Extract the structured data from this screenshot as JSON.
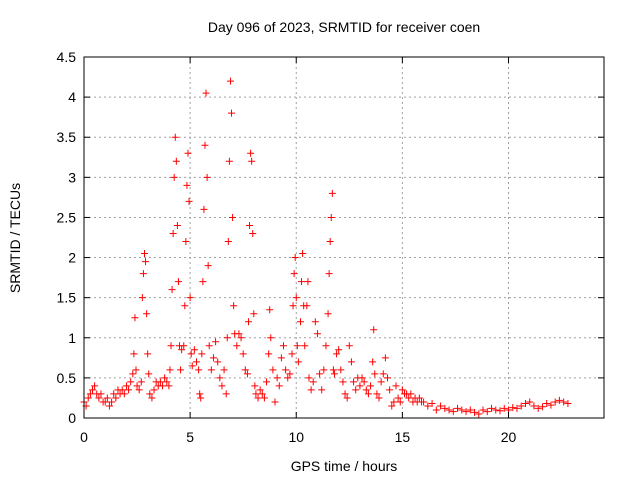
{
  "chart_data": {
    "type": "scatter",
    "title": "Day 096 of 2023, SRMTID for receiver coen",
    "xlabel": "GPS time / hours",
    "ylabel": "SRMTID / TECUs",
    "xlim": [
      0,
      24.5
    ],
    "ylim": [
      0,
      4.5
    ],
    "xticks": [
      0,
      5,
      10,
      15,
      20
    ],
    "xtick_labels": [
      "0",
      "5",
      "10",
      "15",
      "20"
    ],
    "yticks": [
      0,
      0.5,
      1,
      1.5,
      2,
      2.5,
      3,
      3.5,
      4,
      4.5
    ],
    "ytick_labels": [
      "0",
      "0.5",
      "1",
      "1.5",
      "2",
      "2.5",
      "3",
      "3.5",
      "4",
      "4.5"
    ],
    "grid": true,
    "marker": "+",
    "color": "#ff0000",
    "series": [
      {
        "name": "SRMTID",
        "points": [
          [
            0.0,
            0.2
          ],
          [
            0.1,
            0.15
          ],
          [
            0.2,
            0.25
          ],
          [
            0.3,
            0.3
          ],
          [
            0.4,
            0.35
          ],
          [
            0.5,
            0.4
          ],
          [
            0.6,
            0.3
          ],
          [
            0.7,
            0.25
          ],
          [
            0.8,
            0.3
          ],
          [
            0.9,
            0.2
          ],
          [
            1.0,
            0.2
          ],
          [
            1.1,
            0.25
          ],
          [
            1.2,
            0.15
          ],
          [
            1.3,
            0.2
          ],
          [
            1.4,
            0.3
          ],
          [
            1.5,
            0.25
          ],
          [
            1.6,
            0.35
          ],
          [
            1.7,
            0.3
          ],
          [
            1.8,
            0.35
          ],
          [
            1.9,
            0.3
          ],
          [
            2.0,
            0.4
          ],
          [
            2.1,
            0.35
          ],
          [
            2.2,
            0.45
          ],
          [
            2.3,
            0.55
          ],
          [
            2.35,
            0.8
          ],
          [
            2.4,
            1.25
          ],
          [
            2.45,
            0.6
          ],
          [
            2.5,
            0.4
          ],
          [
            2.6,
            0.35
          ],
          [
            2.7,
            0.45
          ],
          [
            2.75,
            1.5
          ],
          [
            2.8,
            1.8
          ],
          [
            2.85,
            2.05
          ],
          [
            2.9,
            1.95
          ],
          [
            2.95,
            1.3
          ],
          [
            3.0,
            0.8
          ],
          [
            3.05,
            0.55
          ],
          [
            3.1,
            0.3
          ],
          [
            3.2,
            0.25
          ],
          [
            3.3,
            0.35
          ],
          [
            3.4,
            0.45
          ],
          [
            3.5,
            0.4
          ],
          [
            3.6,
            0.45
          ],
          [
            3.7,
            0.4
          ],
          [
            3.8,
            0.5
          ],
          [
            3.9,
            0.45
          ],
          [
            4.0,
            0.4
          ],
          [
            4.05,
            0.6
          ],
          [
            4.1,
            0.9
          ],
          [
            4.15,
            1.6
          ],
          [
            4.2,
            2.3
          ],
          [
            4.25,
            3.0
          ],
          [
            4.3,
            3.5
          ],
          [
            4.35,
            3.2
          ],
          [
            4.4,
            2.4
          ],
          [
            4.45,
            1.7
          ],
          [
            4.5,
            0.9
          ],
          [
            4.55,
            0.6
          ],
          [
            4.6,
            0.85
          ],
          [
            4.7,
            0.9
          ],
          [
            4.75,
            1.4
          ],
          [
            4.8,
            2.2
          ],
          [
            4.85,
            2.9
          ],
          [
            4.9,
            3.3
          ],
          [
            4.95,
            2.7
          ],
          [
            5.0,
            1.5
          ],
          [
            5.05,
            0.8
          ],
          [
            5.1,
            0.65
          ],
          [
            5.2,
            0.85
          ],
          [
            5.3,
            0.7
          ],
          [
            5.4,
            0.6
          ],
          [
            5.45,
            0.3
          ],
          [
            5.5,
            0.25
          ],
          [
            5.55,
            0.8
          ],
          [
            5.6,
            1.7
          ],
          [
            5.65,
            2.6
          ],
          [
            5.7,
            3.4
          ],
          [
            5.75,
            4.05
          ],
          [
            5.8,
            3.0
          ],
          [
            5.85,
            1.9
          ],
          [
            5.9,
            0.9
          ],
          [
            6.0,
            0.6
          ],
          [
            6.1,
            0.75
          ],
          [
            6.2,
            0.95
          ],
          [
            6.3,
            0.7
          ],
          [
            6.4,
            0.5
          ],
          [
            6.5,
            0.4
          ],
          [
            6.6,
            0.6
          ],
          [
            6.7,
            0.3
          ],
          [
            6.75,
            1.0
          ],
          [
            6.8,
            2.2
          ],
          [
            6.85,
            3.2
          ],
          [
            6.9,
            4.2
          ],
          [
            6.95,
            3.8
          ],
          [
            7.0,
            2.5
          ],
          [
            7.05,
            1.4
          ],
          [
            7.1,
            1.05
          ],
          [
            7.2,
            0.9
          ],
          [
            7.3,
            1.05
          ],
          [
            7.4,
            1.0
          ],
          [
            7.5,
            0.8
          ],
          [
            7.6,
            0.6
          ],
          [
            7.7,
            0.55
          ],
          [
            7.75,
            1.2
          ],
          [
            7.8,
            2.4
          ],
          [
            7.85,
            3.3
          ],
          [
            7.9,
            3.2
          ],
          [
            7.95,
            2.3
          ],
          [
            8.0,
            1.3
          ],
          [
            8.05,
            0.4
          ],
          [
            8.1,
            0.3
          ],
          [
            8.2,
            0.25
          ],
          [
            8.3,
            0.35
          ],
          [
            8.4,
            0.3
          ],
          [
            8.5,
            0.25
          ],
          [
            8.6,
            0.45
          ],
          [
            8.7,
            0.8
          ],
          [
            8.75,
            1.35
          ],
          [
            8.8,
            1.0
          ],
          [
            8.9,
            0.6
          ],
          [
            9.0,
            0.2
          ],
          [
            9.1,
            0.5
          ],
          [
            9.2,
            0.4
          ],
          [
            9.3,
            0.75
          ],
          [
            9.4,
            0.9
          ],
          [
            9.5,
            0.6
          ],
          [
            9.6,
            0.5
          ],
          [
            9.7,
            0.55
          ],
          [
            9.8,
            0.8
          ],
          [
            9.85,
            1.4
          ],
          [
            9.9,
            1.8
          ],
          [
            9.95,
            2.0
          ],
          [
            10.0,
            1.5
          ],
          [
            10.05,
            0.9
          ],
          [
            10.1,
            0.7
          ],
          [
            10.2,
            1.2
          ],
          [
            10.25,
            1.7
          ],
          [
            10.3,
            2.05
          ],
          [
            10.35,
            1.4
          ],
          [
            10.4,
            0.9
          ],
          [
            10.5,
            1.4
          ],
          [
            10.55,
            1.7
          ],
          [
            10.6,
            0.5
          ],
          [
            10.7,
            0.35
          ],
          [
            10.8,
            0.45
          ],
          [
            10.9,
            1.2
          ],
          [
            11.0,
            1.05
          ],
          [
            11.1,
            0.55
          ],
          [
            11.2,
            0.35
          ],
          [
            11.3,
            0.6
          ],
          [
            11.4,
            0.9
          ],
          [
            11.5,
            1.3
          ],
          [
            11.55,
            1.8
          ],
          [
            11.6,
            2.2
          ],
          [
            11.65,
            2.5
          ],
          [
            11.7,
            2.8
          ],
          [
            11.75,
            0.6
          ],
          [
            11.8,
            0.55
          ],
          [
            11.9,
            0.8
          ],
          [
            12.0,
            0.85
          ],
          [
            12.1,
            0.6
          ],
          [
            12.2,
            0.45
          ],
          [
            12.3,
            0.3
          ],
          [
            12.4,
            0.25
          ],
          [
            12.5,
            0.9
          ],
          [
            12.6,
            0.7
          ],
          [
            12.7,
            0.45
          ],
          [
            12.8,
            0.35
          ],
          [
            12.9,
            0.5
          ],
          [
            13.0,
            0.4
          ],
          [
            13.1,
            0.5
          ],
          [
            13.2,
            0.45
          ],
          [
            13.3,
            0.35
          ],
          [
            13.4,
            0.3
          ],
          [
            13.5,
            0.4
          ],
          [
            13.6,
            0.7
          ],
          [
            13.65,
            1.1
          ],
          [
            13.7,
            0.55
          ],
          [
            13.8,
            0.3
          ],
          [
            13.9,
            0.25
          ],
          [
            14.0,
            0.45
          ],
          [
            14.1,
            0.55
          ],
          [
            14.2,
            0.75
          ],
          [
            14.3,
            0.5
          ],
          [
            14.4,
            0.35
          ],
          [
            14.5,
            0.15
          ],
          [
            14.6,
            0.2
          ],
          [
            14.7,
            0.4
          ],
          [
            14.8,
            0.25
          ],
          [
            14.9,
            0.2
          ],
          [
            15.0,
            0.35
          ],
          [
            15.1,
            0.3
          ],
          [
            15.2,
            0.3
          ],
          [
            15.3,
            0.25
          ],
          [
            15.4,
            0.3
          ],
          [
            15.5,
            0.2
          ],
          [
            15.6,
            0.25
          ],
          [
            15.7,
            0.2
          ],
          [
            15.8,
            0.25
          ],
          [
            15.9,
            0.2
          ],
          [
            16.0,
            0.2
          ],
          [
            16.2,
            0.15
          ],
          [
            16.4,
            0.18
          ],
          [
            16.6,
            0.1
          ],
          [
            16.8,
            0.15
          ],
          [
            17.0,
            0.12
          ],
          [
            17.2,
            0.1
          ],
          [
            17.4,
            0.08
          ],
          [
            17.6,
            0.12
          ],
          [
            17.8,
            0.1
          ],
          [
            18.0,
            0.08
          ],
          [
            18.2,
            0.1
          ],
          [
            18.4,
            0.07
          ],
          [
            18.6,
            0.05
          ],
          [
            18.8,
            0.1
          ],
          [
            19.0,
            0.08
          ],
          [
            19.2,
            0.12
          ],
          [
            19.4,
            0.1
          ],
          [
            19.6,
            0.09
          ],
          [
            19.8,
            0.12
          ],
          [
            20.0,
            0.1
          ],
          [
            20.2,
            0.13
          ],
          [
            20.4,
            0.12
          ],
          [
            20.6,
            0.15
          ],
          [
            20.8,
            0.18
          ],
          [
            21.0,
            0.2
          ],
          [
            21.2,
            0.15
          ],
          [
            21.4,
            0.12
          ],
          [
            21.6,
            0.14
          ],
          [
            21.8,
            0.18
          ],
          [
            22.0,
            0.16
          ],
          [
            22.2,
            0.2
          ],
          [
            22.4,
            0.22
          ],
          [
            22.6,
            0.2
          ],
          [
            22.8,
            0.18
          ]
        ]
      }
    ]
  }
}
